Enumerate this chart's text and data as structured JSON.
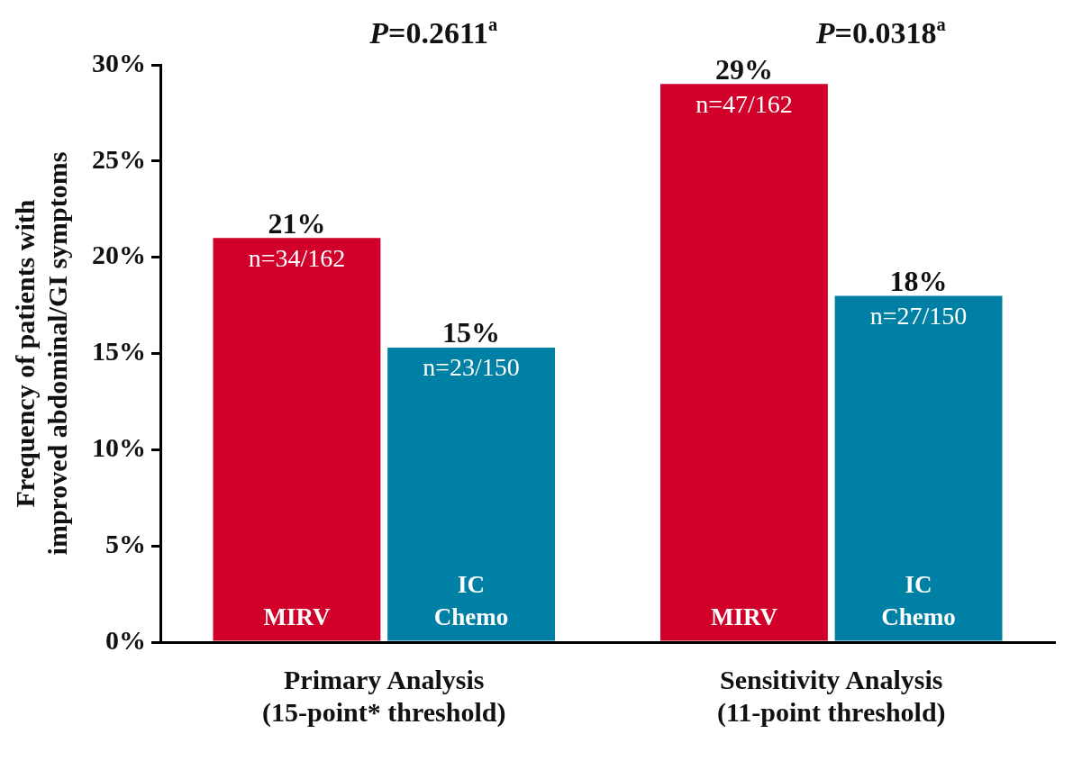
{
  "chart_data": {
    "type": "bar",
    "ylabel": "Frequency of patients with\nimproved abdominal/GI symptoms",
    "categories": [
      "Primary Analysis\n(15-point* threshold)",
      "Sensitivity Analysis\n(11-point threshold)"
    ],
    "series": [
      {
        "name": "MIRV",
        "color": "#d0002b",
        "values": [
          21,
          29
        ],
        "value_labels": [
          "21%",
          "29%"
        ]
      },
      {
        "name": "IC Chemo",
        "color": "#0080a4",
        "values": [
          15.3,
          18
        ],
        "value_labels": [
          "15%",
          "18%"
        ]
      }
    ],
    "ylim": [
      0,
      30
    ],
    "yticks": [
      {
        "value": 0,
        "label": "0%"
      },
      {
        "value": 5,
        "label": "5%"
      },
      {
        "value": 10,
        "label": "10%"
      },
      {
        "value": 15,
        "label": "15%"
      },
      {
        "value": 20,
        "label": "20%"
      },
      {
        "value": 25,
        "label": "25%"
      },
      {
        "value": 30,
        "label": "30%"
      }
    ],
    "grid": false,
    "legend": false,
    "annotations": [
      {
        "text": "n=34/162",
        "x": "Primary Analysis\n(15-point* threshold)",
        "y": 21
      },
      {
        "text": "n=23/150",
        "x": "Primary Analysis\n(15-point* threshold)",
        "y": 15.3
      },
      {
        "text": "n=47/162",
        "x": "Sensitivity Analysis\n(11-point threshold)",
        "y": 29
      },
      {
        "text": "n=27/150",
        "x": "Sensitivity Analysis\n(11-point threshold)",
        "y": 18
      },
      "P=0.2611$^{a}$",
      "P=0.0318$^{a}$"
    ]
  }
}
